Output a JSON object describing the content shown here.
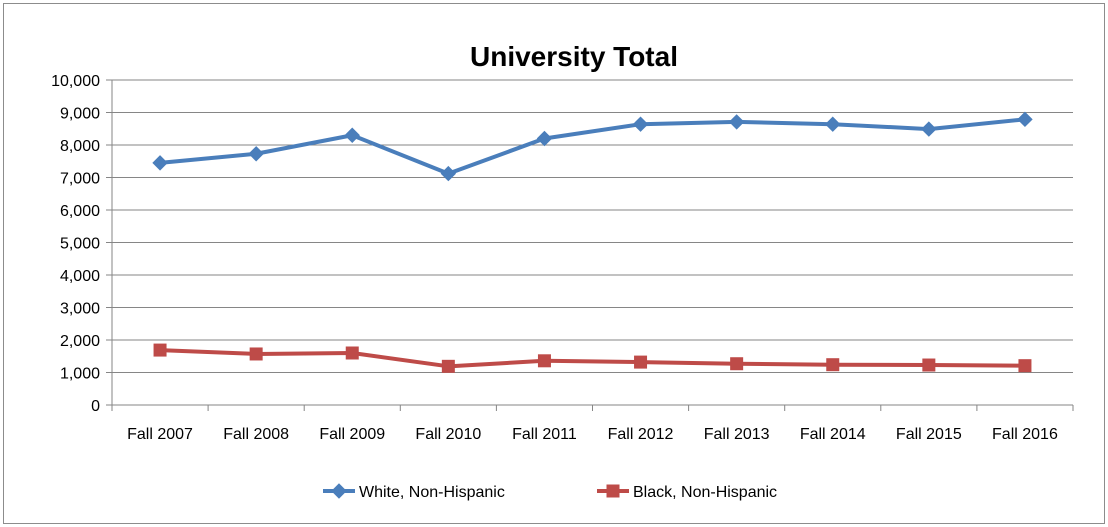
{
  "chart_data": {
    "type": "line",
    "title": "University Total",
    "xlabel": "",
    "ylabel": "",
    "categories": [
      "Fall 2007",
      "Fall 2008",
      "Fall 2009",
      "Fall 2010",
      "Fall 2011",
      "Fall 2012",
      "Fall 2013",
      "Fall 2014",
      "Fall 2015",
      "Fall 2016"
    ],
    "ylim": [
      0,
      10000
    ],
    "yticks": [
      "0",
      "1,000",
      "2,000",
      "3,000",
      "4,000",
      "5,000",
      "6,000",
      "7,000",
      "8,000",
      "9,000",
      "10,000"
    ],
    "grid": true,
    "legend_position": "bottom",
    "series": [
      {
        "name": "White, Non-Hispanic",
        "color": "#4a7ebb",
        "marker": "diamond",
        "values": [
          7450,
          7730,
          8300,
          7120,
          8200,
          8640,
          8710,
          8640,
          8490,
          8790
        ]
      },
      {
        "name": "Black, Non-Hispanic",
        "color": "#be4b48",
        "marker": "square",
        "values": [
          1690,
          1570,
          1600,
          1190,
          1360,
          1320,
          1270,
          1240,
          1230,
          1210
        ]
      }
    ]
  }
}
